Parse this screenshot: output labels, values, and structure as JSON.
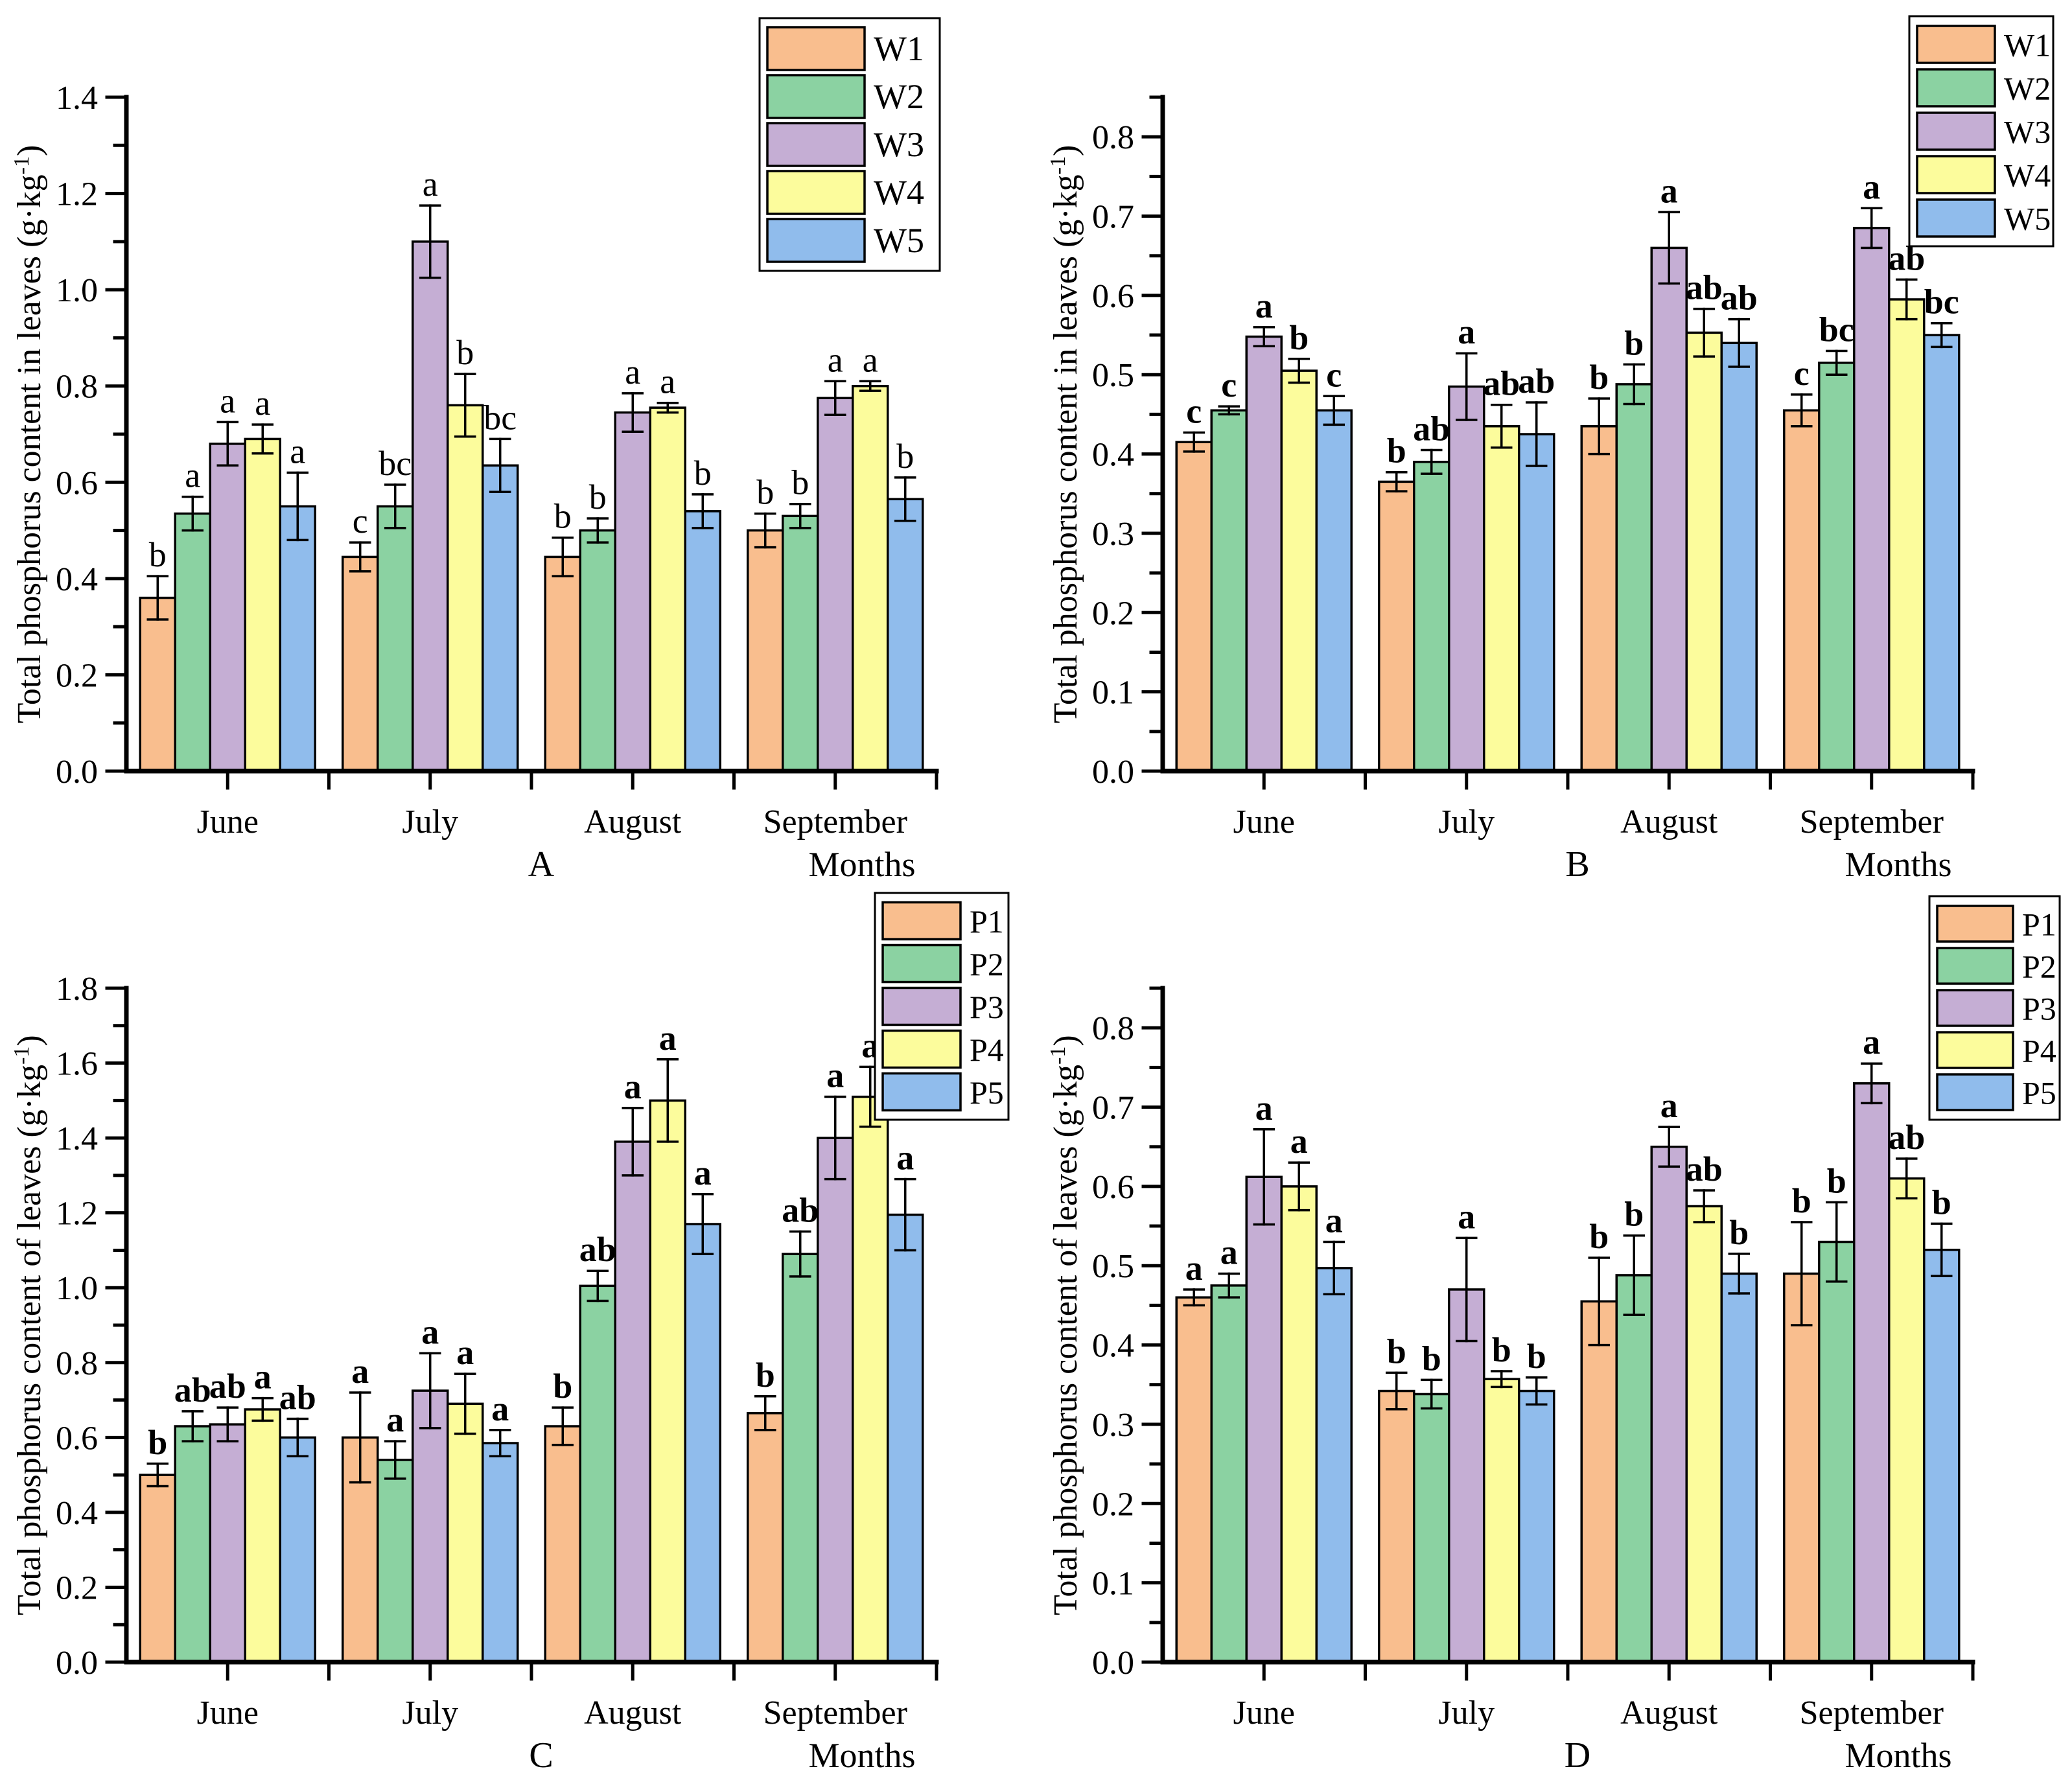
{
  "figure": {
    "background": "#ffffff",
    "months_axis_label": "Months"
  },
  "colors": {
    "series": [
      "#F9BE8E",
      "#8BD2A2",
      "#C5AED4",
      "#FCFC9C",
      "#90BCEC"
    ],
    "bar_border": "#000000",
    "axis": "#000000",
    "legend_background": "#ffffff"
  },
  "chart_data": [
    {
      "type": "bar",
      "panel_label": "A",
      "xlabel": "Months",
      "ylabel_parts": {
        "pre": "Total phosphorus content in leaves (g·kg",
        "sup": "-1",
        "post": ")"
      },
      "categories": [
        "June",
        "July",
        "August",
        "September"
      ],
      "ylim": [
        0,
        1.4
      ],
      "axis_max": 1.4,
      "ytick_major": 0.2,
      "ytick_minor": 0.1,
      "letters_bold": false,
      "legend_position": "top-right",
      "series": [
        {
          "name": "W1",
          "values": [
            0.36,
            0.445,
            0.445,
            0.5
          ],
          "errors": [
            0.045,
            0.03,
            0.04,
            0.035
          ],
          "letters": [
            "b",
            "c",
            "b",
            "b"
          ]
        },
        {
          "name": "W2",
          "values": [
            0.535,
            0.55,
            0.5,
            0.53
          ],
          "errors": [
            0.035,
            0.045,
            0.025,
            0.025
          ],
          "letters": [
            "a",
            "bc",
            "b",
            "b"
          ]
        },
        {
          "name": "W3",
          "values": [
            0.68,
            1.1,
            0.745,
            0.775
          ],
          "errors": [
            0.045,
            0.075,
            0.04,
            0.035
          ],
          "letters": [
            "a",
            "a",
            "a",
            "a"
          ]
        },
        {
          "name": "W4",
          "values": [
            0.69,
            0.76,
            0.755,
            0.8
          ],
          "errors": [
            0.03,
            0.065,
            0.01,
            0.01
          ],
          "letters": [
            "a",
            "b",
            "a",
            "a"
          ]
        },
        {
          "name": "W5",
          "values": [
            0.55,
            0.635,
            0.54,
            0.565
          ],
          "errors": [
            0.07,
            0.055,
            0.035,
            0.045
          ],
          "letters": [
            "a",
            "bc",
            "b",
            "b"
          ]
        }
      ]
    },
    {
      "type": "bar",
      "panel_label": "B",
      "xlabel": "Months",
      "ylabel_parts": {
        "pre": "Total phosphorus content in leaves (g·kg",
        "sup": "-1",
        "post": ")"
      },
      "categories": [
        "June",
        "July",
        "August",
        "September"
      ],
      "ylim": [
        0,
        0.8
      ],
      "axis_max": 0.85,
      "ytick_major": 0.1,
      "ytick_minor": 0.05,
      "letters_bold": true,
      "legend_position": "top-right",
      "series": [
        {
          "name": "W1",
          "values": [
            0.415,
            0.365,
            0.435,
            0.455
          ],
          "errors": [
            0.012,
            0.012,
            0.035,
            0.02
          ],
          "letters": [
            "c",
            "b",
            "b",
            "c"
          ]
        },
        {
          "name": "W2",
          "values": [
            0.455,
            0.39,
            0.488,
            0.515
          ],
          "errors": [
            0.005,
            0.015,
            0.025,
            0.015
          ],
          "letters": [
            "c",
            "ab",
            "b",
            "bc"
          ]
        },
        {
          "name": "W3",
          "values": [
            0.548,
            0.485,
            0.66,
            0.685
          ],
          "errors": [
            0.012,
            0.042,
            0.045,
            0.025
          ],
          "letters": [
            "a",
            "a",
            "a",
            "a"
          ]
        },
        {
          "name": "W4",
          "values": [
            0.505,
            0.435,
            0.553,
            0.595
          ],
          "errors": [
            0.015,
            0.027,
            0.03,
            0.025
          ],
          "letters": [
            "b",
            "ab",
            "ab",
            "ab"
          ]
        },
        {
          "name": "W5",
          "values": [
            0.455,
            0.425,
            0.54,
            0.55
          ],
          "errors": [
            0.018,
            0.04,
            0.03,
            0.015
          ],
          "letters": [
            "c",
            "ab",
            "ab",
            "bc"
          ]
        }
      ]
    },
    {
      "type": "bar",
      "panel_label": "C",
      "xlabel": "Months",
      "ylabel_parts": {
        "pre": "Total phosphorus content of leaves (g·kg",
        "sup": "-1",
        "post": ")"
      },
      "categories": [
        "June",
        "July",
        "August",
        "September"
      ],
      "ylim": [
        0,
        1.8
      ],
      "axis_max": 1.8,
      "ytick_major": 0.2,
      "ytick_minor": 0.1,
      "letters_bold": true,
      "legend_position": "top-right",
      "series": [
        {
          "name": "P1",
          "values": [
            0.5,
            0.6,
            0.63,
            0.665
          ],
          "errors": [
            0.03,
            0.12,
            0.05,
            0.045
          ],
          "letters": [
            "b",
            "a",
            "b",
            "b"
          ]
        },
        {
          "name": "P2",
          "values": [
            0.63,
            0.54,
            1.005,
            1.09
          ],
          "errors": [
            0.04,
            0.05,
            0.04,
            0.06
          ],
          "letters": [
            "ab",
            "a",
            "ab",
            "ab"
          ]
        },
        {
          "name": "P3",
          "values": [
            0.635,
            0.725,
            1.39,
            1.4
          ],
          "errors": [
            0.045,
            0.1,
            0.09,
            0.11
          ],
          "letters": [
            "ab",
            "a",
            "a",
            "a"
          ]
        },
        {
          "name": "P4",
          "values": [
            0.675,
            0.69,
            1.5,
            1.51
          ],
          "errors": [
            0.03,
            0.08,
            0.11,
            0.08
          ],
          "letters": [
            "a",
            "a",
            "a",
            "a"
          ]
        },
        {
          "name": "P5",
          "values": [
            0.6,
            0.585,
            1.17,
            1.195
          ],
          "errors": [
            0.05,
            0.035,
            0.08,
            0.095
          ],
          "letters": [
            "ab",
            "a",
            "a",
            "a"
          ]
        }
      ]
    },
    {
      "type": "bar",
      "panel_label": "D",
      "xlabel": "Months",
      "ylabel_parts": {
        "pre": "Total phosphorus content of leaves (g·kg",
        "sup": "-1",
        "post": ")"
      },
      "categories": [
        "June",
        "July",
        "August",
        "September"
      ],
      "ylim": [
        0,
        0.8
      ],
      "axis_max": 0.85,
      "ytick_major": 0.1,
      "ytick_minor": 0.05,
      "letters_bold": true,
      "legend_position": "top-right",
      "series": [
        {
          "name": "P1",
          "values": [
            0.46,
            0.342,
            0.455,
            0.49
          ],
          "errors": [
            0.01,
            0.023,
            0.055,
            0.065
          ],
          "letters": [
            "a",
            "b",
            "b",
            "b"
          ]
        },
        {
          "name": "P2",
          "values": [
            0.475,
            0.338,
            0.488,
            0.53
          ],
          "errors": [
            0.015,
            0.018,
            0.05,
            0.05
          ],
          "letters": [
            "a",
            "b",
            "b",
            "b"
          ]
        },
        {
          "name": "P3",
          "values": [
            0.612,
            0.47,
            0.65,
            0.73
          ],
          "errors": [
            0.06,
            0.065,
            0.025,
            0.025
          ],
          "letters": [
            "a",
            "a",
            "a",
            "a"
          ]
        },
        {
          "name": "P4",
          "values": [
            0.6,
            0.357,
            0.575,
            0.61
          ],
          "errors": [
            0.03,
            0.01,
            0.02,
            0.025
          ],
          "letters": [
            "a",
            "b",
            "ab",
            "ab"
          ]
        },
        {
          "name": "P5",
          "values": [
            0.497,
            0.342,
            0.49,
            0.52
          ],
          "errors": [
            0.033,
            0.017,
            0.025,
            0.033
          ],
          "letters": [
            "a",
            "b",
            "b",
            "b"
          ]
        }
      ]
    }
  ]
}
